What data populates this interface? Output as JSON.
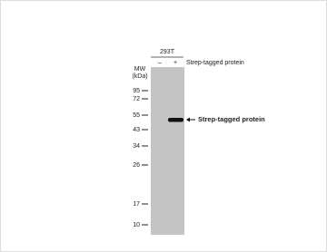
{
  "header": {
    "cell_line": "293T",
    "lanes": [
      "–",
      "+"
    ],
    "treatment": "Strep-tagged protein"
  },
  "mw_label": [
    "MW",
    "(kDa)"
  ],
  "markers": [
    "95",
    "72",
    "55",
    "43",
    "34",
    "26",
    "17",
    "10"
  ],
  "band_label": "Strep-tagged protein"
}
